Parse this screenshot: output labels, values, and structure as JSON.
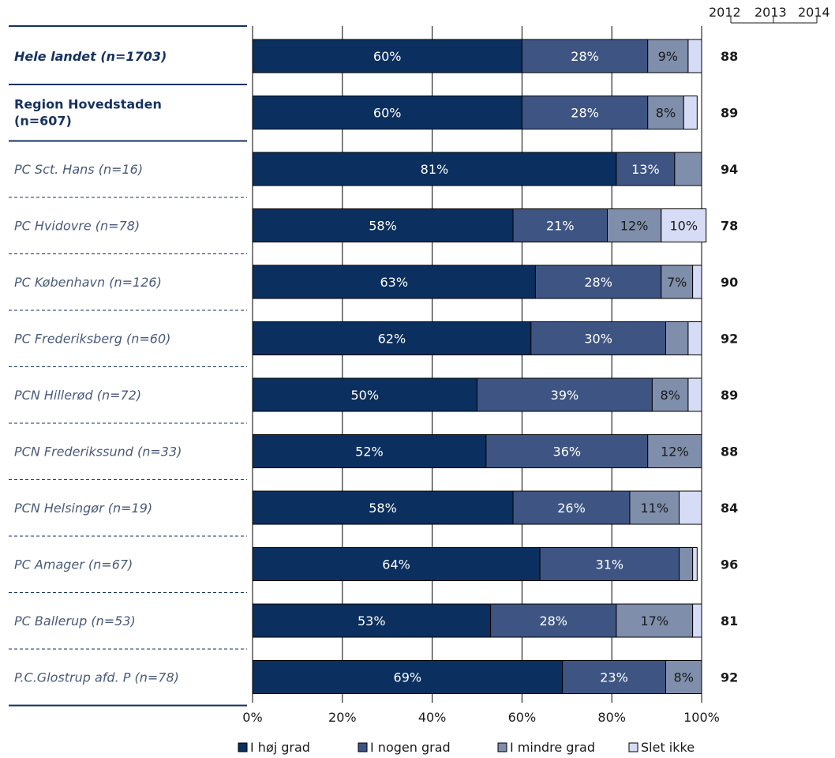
{
  "year_header": {
    "y2012": "2012",
    "y2013": "2013",
    "y2014": "2014"
  },
  "colors": {
    "i_hoj_grad": "#0b2f5e",
    "i_nogen_grad": "#3e5583",
    "i_mindre_grad": "#7f8eab",
    "slet_ikke": "#d6dcf5"
  },
  "chart_data": {
    "type": "bar",
    "orientation": "horizontal",
    "stacked": true,
    "categories": [
      "Hele landet (n=1703)",
      "Region Hovedstaden (n=607)",
      "PC Sct. Hans (n=16)",
      "PC Hvidovre (n=78)",
      "PC København (n=126)",
      "PC Frederiksberg (n=60)",
      "PCN Hillerød (n=72)",
      "PCN Frederikssund (n=33)",
      "PCN Helsingør (n=19)",
      "PC Amager (n=67)",
      "PC Ballerup (n=53)",
      "P.C.Glostrup afd. P (n=78)"
    ],
    "category_styles": [
      "bold-italic",
      "bold",
      "italic",
      "italic",
      "italic",
      "italic",
      "italic",
      "italic",
      "italic",
      "italic",
      "italic",
      "italic"
    ],
    "series": [
      {
        "name": "I høj grad",
        "values": [
          60,
          60,
          81,
          58,
          63,
          62,
          50,
          52,
          58,
          64,
          53,
          69
        ],
        "labels": [
          "60%",
          "60%",
          "81%",
          "58%",
          "63%",
          "62%",
          "50%",
          "52%",
          "58%",
          "64%",
          "53%",
          "69%"
        ]
      },
      {
        "name": "I nogen grad",
        "values": [
          28,
          28,
          13,
          21,
          28,
          30,
          39,
          36,
          26,
          31,
          28,
          23
        ],
        "labels": [
          "28%",
          "28%",
          "13%",
          "21%",
          "28%",
          "30%",
          "39%",
          "36%",
          "26%",
          "31%",
          "28%",
          "23%"
        ]
      },
      {
        "name": "I mindre grad",
        "values": [
          9,
          8,
          6,
          12,
          7,
          5,
          8,
          12,
          11,
          3,
          17,
          8
        ],
        "labels": [
          "9%",
          "8%",
          "",
          "12%",
          "7%",
          "",
          "8%",
          "12%",
          "11%",
          "",
          "17%",
          "8%"
        ]
      },
      {
        "name": "Slet ikke",
        "values": [
          3,
          3,
          0,
          10,
          2,
          3,
          3,
          0,
          5,
          1,
          2,
          0
        ],
        "labels": [
          "",
          "",
          "",
          "10%",
          "",
          "",
          "",
          "",
          "",
          "",
          "",
          ""
        ]
      }
    ],
    "scores": [
      "88",
      "89",
      "94",
      "78",
      "90",
      "92",
      "89",
      "88",
      "84",
      "96",
      "81",
      "92"
    ],
    "xlim": [
      0,
      100
    ],
    "xticks": [
      "0%",
      "20%",
      "40%",
      "60%",
      "80%",
      "100%"
    ],
    "grid": true,
    "legend_position": "bottom"
  }
}
